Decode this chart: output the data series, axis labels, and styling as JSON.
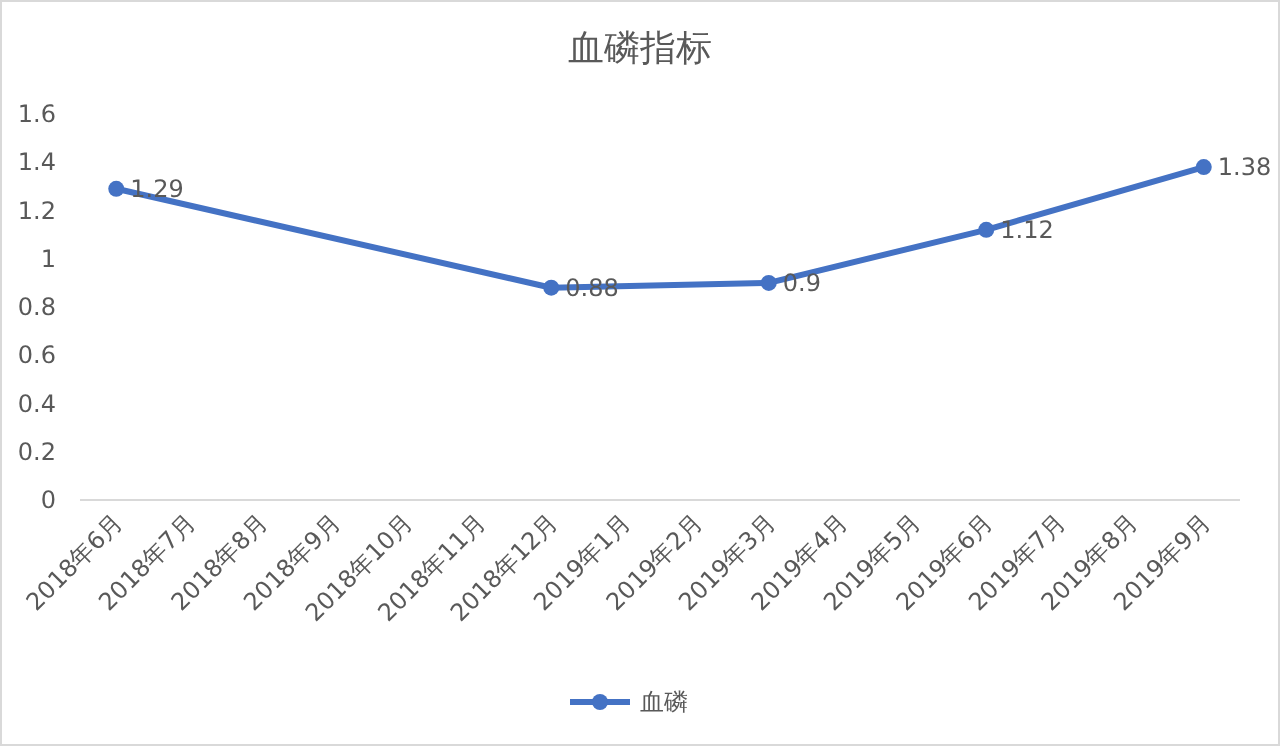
{
  "chart_data": {
    "type": "line",
    "title": "血磷指标",
    "categories": [
      "2018年6月",
      "2018年7月",
      "2018年8月",
      "2018年9月",
      "2018年10月",
      "2018年11月",
      "2018年12月",
      "2019年1月",
      "2019年2月",
      "2019年3月",
      "2019年4月",
      "2019年5月",
      "2019年6月",
      "2019年7月",
      "2019年8月",
      "2019年9月"
    ],
    "series": [
      {
        "name": "血磷",
        "color": "#4472c4",
        "values": [
          1.29,
          null,
          null,
          null,
          null,
          null,
          0.88,
          null,
          null,
          0.9,
          null,
          null,
          1.12,
          null,
          null,
          1.38
        ]
      }
    ],
    "ylim": [
      0,
      1.6
    ],
    "yticks": [
      0,
      0.2,
      0.4,
      0.6,
      0.8,
      1,
      1.2,
      1.4,
      1.6
    ],
    "grid": false,
    "legend": "bottom",
    "marker": "circle",
    "line_style": "solid",
    "data_labels": true
  }
}
